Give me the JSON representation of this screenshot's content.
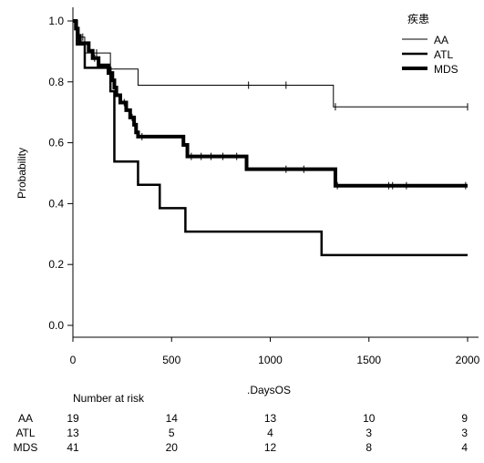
{
  "chart_data": {
    "type": "line",
    "subtype": "kaplan-meier",
    "title": "",
    "xlabel": ".DaysOS",
    "ylabel": "Probability",
    "xlim": [
      0,
      2000
    ],
    "ylim": [
      0,
      1.0
    ],
    "xticks": [
      0,
      500,
      1000,
      1500,
      2000
    ],
    "xtick_labels": [
      "0",
      "500",
      "1000",
      "1500",
      "2000"
    ],
    "yticks": [
      0,
      0.2,
      0.4,
      0.6,
      0.8,
      1.0
    ],
    "ytick_labels": [
      "0.0",
      "0.2",
      "0.4",
      "0.6",
      "0.8",
      "1.0"
    ],
    "grid": false,
    "legend_title": "疾患",
    "legend_position": "top-right",
    "series": [
      {
        "name": "AA",
        "line_width": "thin",
        "steps": [
          [
            0,
            1.0
          ],
          [
            20,
            0.947
          ],
          [
            60,
            0.895
          ],
          [
            190,
            0.842
          ],
          [
            330,
            0.789
          ],
          [
            1320,
            0.718
          ],
          [
            2000,
            0.718
          ]
        ],
        "censor": [
          50,
          120,
          890,
          1080,
          1330,
          2000
        ]
      },
      {
        "name": "ATL",
        "line_width": "medium",
        "steps": [
          [
            0,
            1.0
          ],
          [
            20,
            0.923
          ],
          [
            60,
            0.846
          ],
          [
            190,
            0.769
          ],
          [
            210,
            0.538
          ],
          [
            330,
            0.462
          ],
          [
            440,
            0.385
          ],
          [
            570,
            0.308
          ],
          [
            1260,
            0.231
          ],
          [
            2000,
            0.231
          ]
        ],
        "censor": []
      },
      {
        "name": "MDS",
        "line_width": "thick",
        "steps": [
          [
            0,
            1.0
          ],
          [
            15,
            0.975
          ],
          [
            25,
            0.951
          ],
          [
            35,
            0.927
          ],
          [
            80,
            0.902
          ],
          [
            100,
            0.878
          ],
          [
            130,
            0.854
          ],
          [
            180,
            0.829
          ],
          [
            200,
            0.805
          ],
          [
            210,
            0.781
          ],
          [
            220,
            0.756
          ],
          [
            240,
            0.732
          ],
          [
            270,
            0.707
          ],
          [
            290,
            0.683
          ],
          [
            310,
            0.659
          ],
          [
            320,
            0.634
          ],
          [
            330,
            0.62
          ],
          [
            560,
            0.593
          ],
          [
            580,
            0.555
          ],
          [
            880,
            0.513
          ],
          [
            1330,
            0.459
          ],
          [
            2000,
            0.459
          ]
        ],
        "censor": [
          60,
          110,
          260,
          300,
          350,
          600,
          650,
          700,
          760,
          830,
          1080,
          1170,
          1340,
          1600,
          1620,
          1690,
          1990
        ]
      }
    ],
    "risk_table": {
      "header": "Number at risk",
      "times": [
        "0",
        "500",
        "1000",
        "1500",
        "2000"
      ],
      "rows": [
        {
          "label": "AA",
          "values": [
            "19",
            "14",
            "13",
            "10",
            "9"
          ]
        },
        {
          "label": "ATL",
          "values": [
            "13",
            "5",
            "4",
            "3",
            "3"
          ]
        },
        {
          "label": "MDS",
          "values": [
            "41",
            "20",
            "12",
            "8",
            "4"
          ]
        }
      ]
    }
  }
}
